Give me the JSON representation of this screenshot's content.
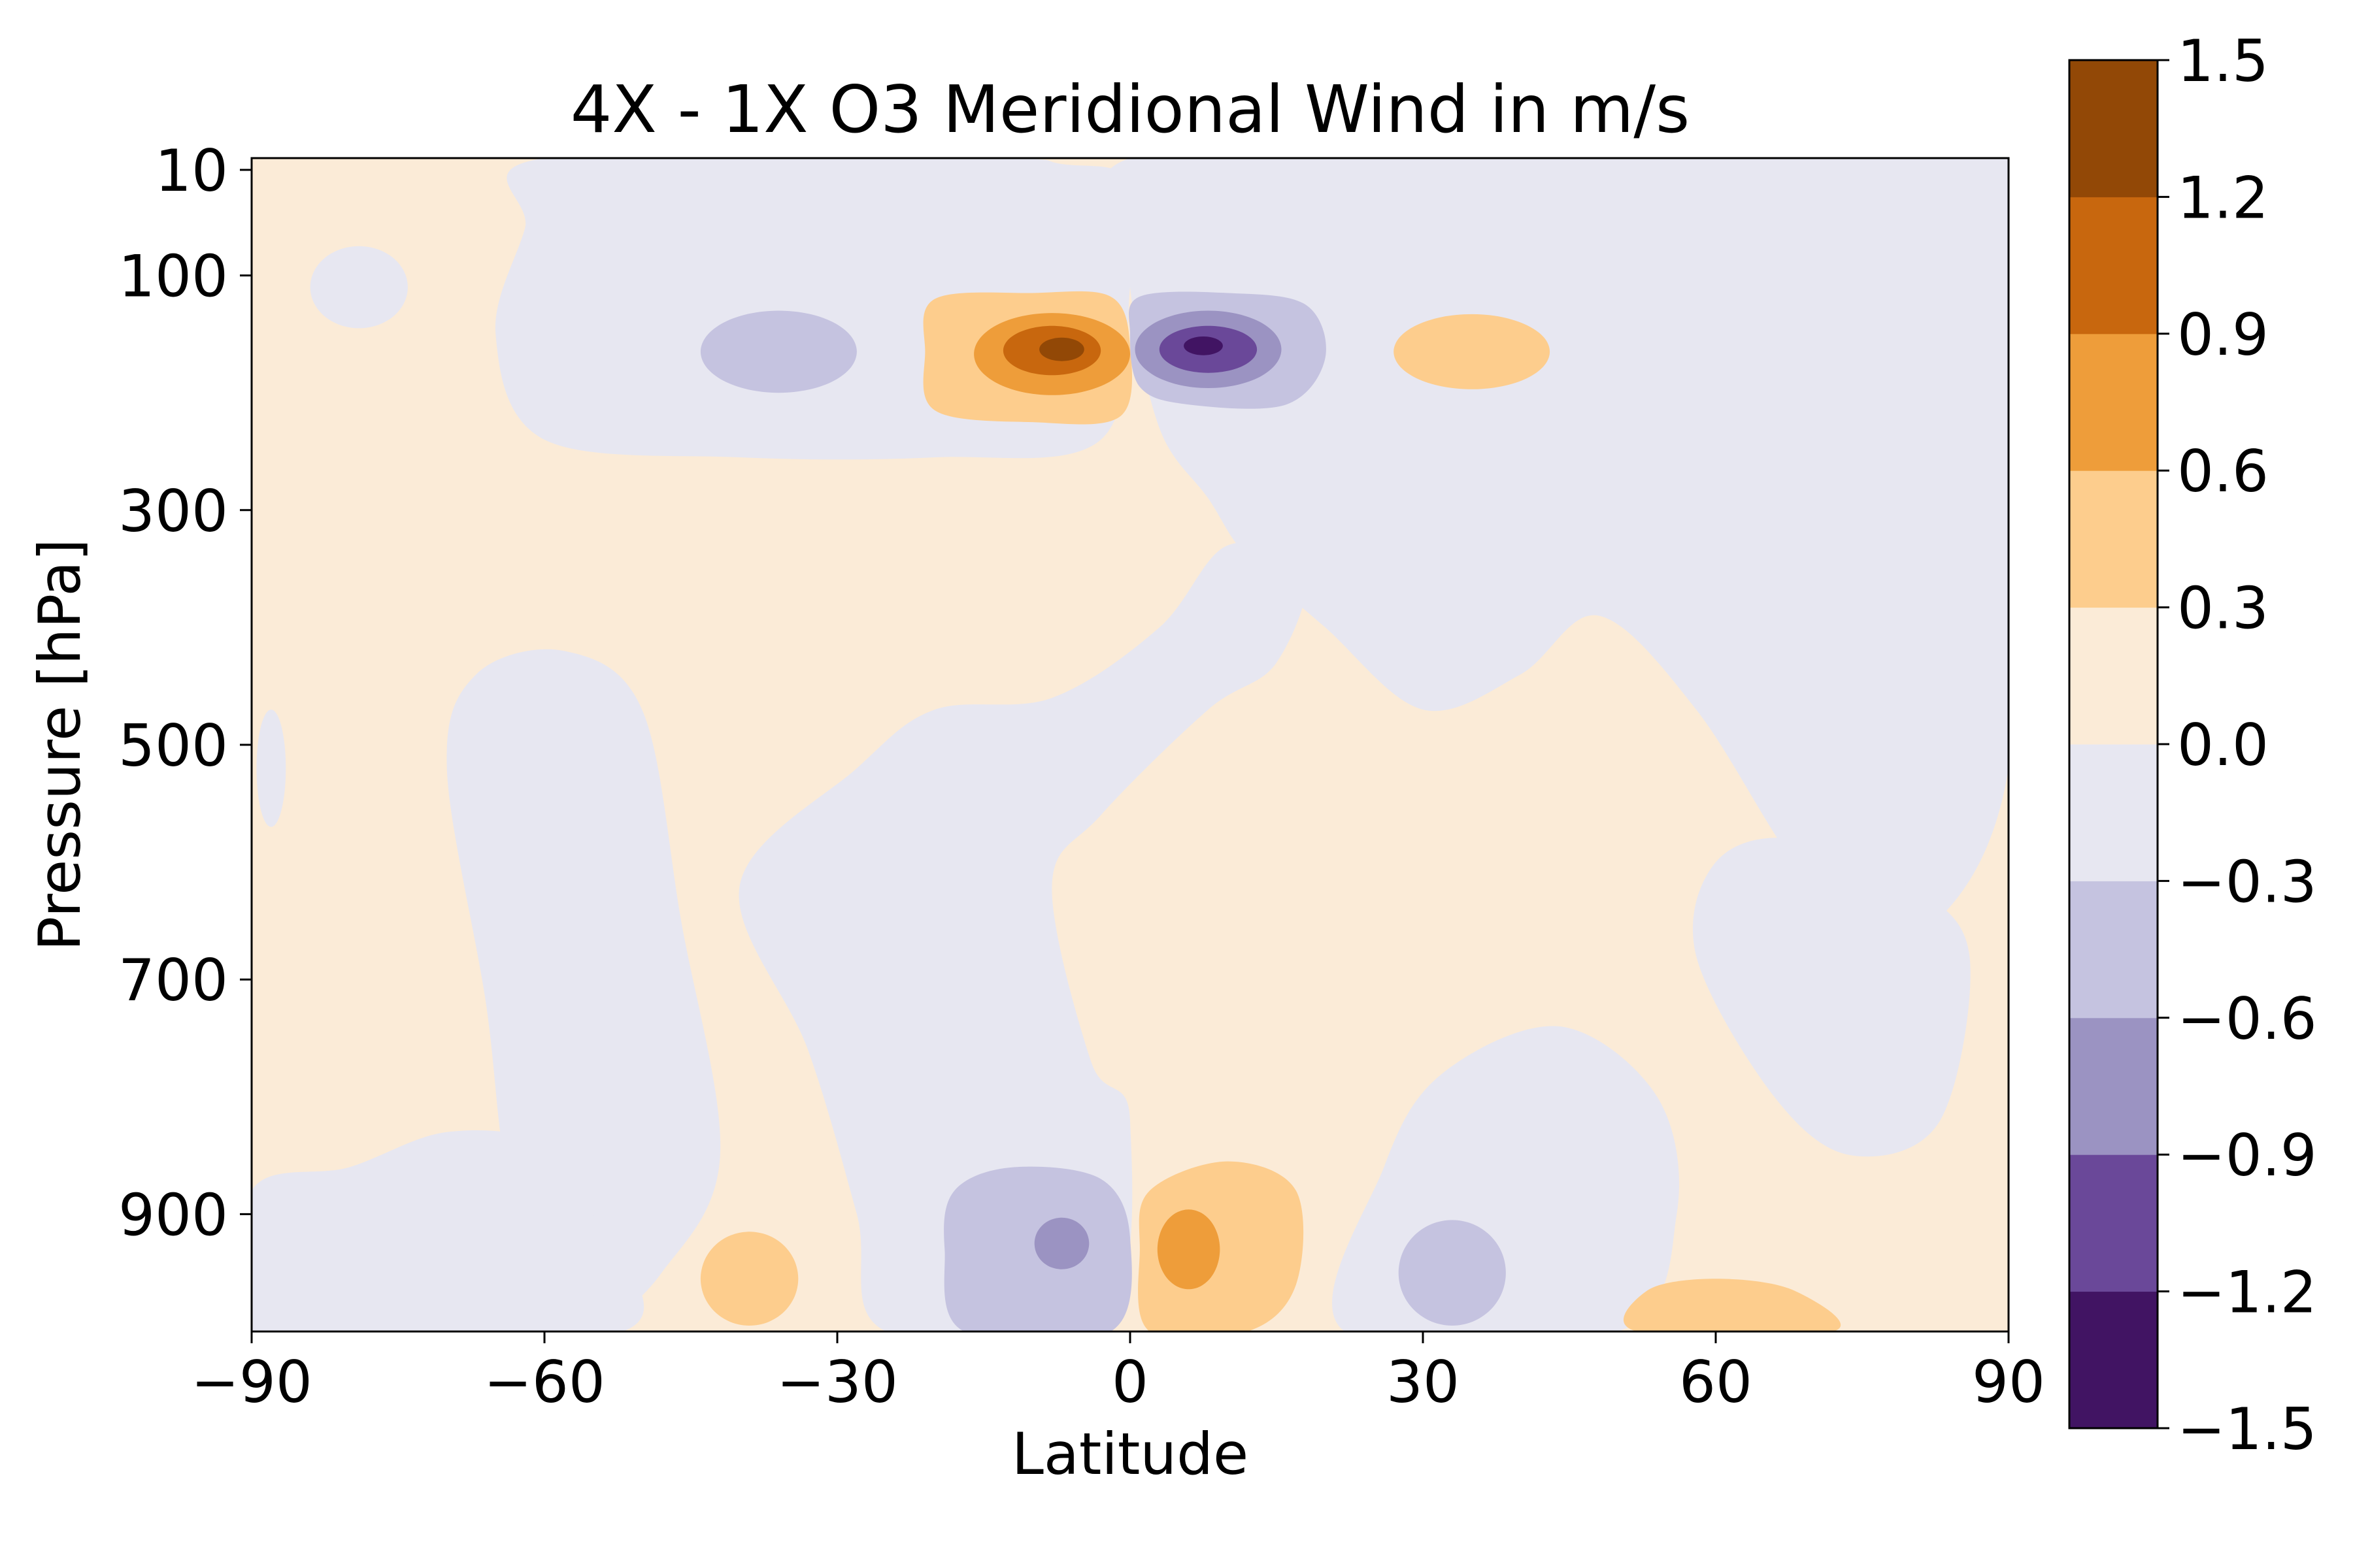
{
  "chart_data": {
    "type": "contourf",
    "title": "4X - 1X O3 Meridional Wind in m/s",
    "xlabel": "Latitude",
    "ylabel": "Pressure [hPa]",
    "xlim": [
      -90,
      90
    ],
    "ylim": [
      1000,
      0
    ],
    "y_scale": "linear, inverted (pressure increases downward)",
    "x_ticks": [
      -90,
      -60,
      -30,
      0,
      30,
      60,
      90
    ],
    "x_tick_labels": [
      "−90",
      "−60",
      "−30",
      "0",
      "30",
      "60",
      "90"
    ],
    "y_ticks": [
      10,
      100,
      300,
      500,
      700,
      900
    ],
    "y_tick_labels": [
      "10",
      "100",
      "300",
      "500",
      "700",
      "900"
    ],
    "colormap": "PuOr_r",
    "background_fill": "#FBEBD7",
    "colorbar": {
      "levels": [
        -1.5,
        -1.2,
        -0.9,
        -0.6,
        -0.3,
        0.0,
        0.3,
        0.6,
        0.9,
        1.2,
        1.5
      ],
      "tick_labels": [
        "−1.5",
        "−1.2",
        "−0.9",
        "−0.6",
        "−0.3",
        "0.0",
        "0.3",
        "0.6",
        "0.9",
        "1.2",
        "1.5"
      ],
      "colors": [
        "#411463",
        "#6A4899",
        "#9B93C2",
        "#C5C3E0",
        "#E7E7F1",
        "#FBEBD7",
        "#FDCD8D",
        "#EE9D3A",
        "#C8670E",
        "#924806"
      ],
      "placement": "right"
    },
    "features": [
      {
        "name": "positive core, upper troposphere south of equator",
        "lat_center": -8,
        "pressure_center": 165,
        "peak_value": 1.35,
        "sign": "positive"
      },
      {
        "name": "negative core, upper troposphere north of equator",
        "lat_center": 8,
        "pressure_center": 165,
        "peak_value": -1.4,
        "sign": "negative"
      },
      {
        "name": "negative lobe upper troposphere",
        "lat_center": -36,
        "pressure_center": 165,
        "peak_value": -0.45,
        "sign": "negative"
      },
      {
        "name": "positive lobe upper troposphere",
        "lat_center": 35,
        "pressure_center": 165,
        "peak_value": 0.45,
        "sign": "positive"
      },
      {
        "name": "positive core near surface north of equator",
        "lat_center": 6,
        "pressure_center": 930,
        "peak_value": 0.75,
        "sign": "positive"
      },
      {
        "name": "negative core near surface south of equator",
        "lat_center": -7,
        "pressure_center": 925,
        "peak_value": -0.75,
        "sign": "negative"
      },
      {
        "name": "positive lobe near surface",
        "lat_center": -39,
        "pressure_center": 955,
        "peak_value": 0.4,
        "sign": "positive"
      },
      {
        "name": "negative lobe near surface",
        "lat_center": 33,
        "pressure_center": 945,
        "peak_value": -0.4,
        "sign": "negative"
      },
      {
        "name": "positive lobe near surface high latitude",
        "lat_center": 62,
        "pressure_center": 985,
        "peak_value": 0.35,
        "sign": "positive"
      }
    ]
  }
}
